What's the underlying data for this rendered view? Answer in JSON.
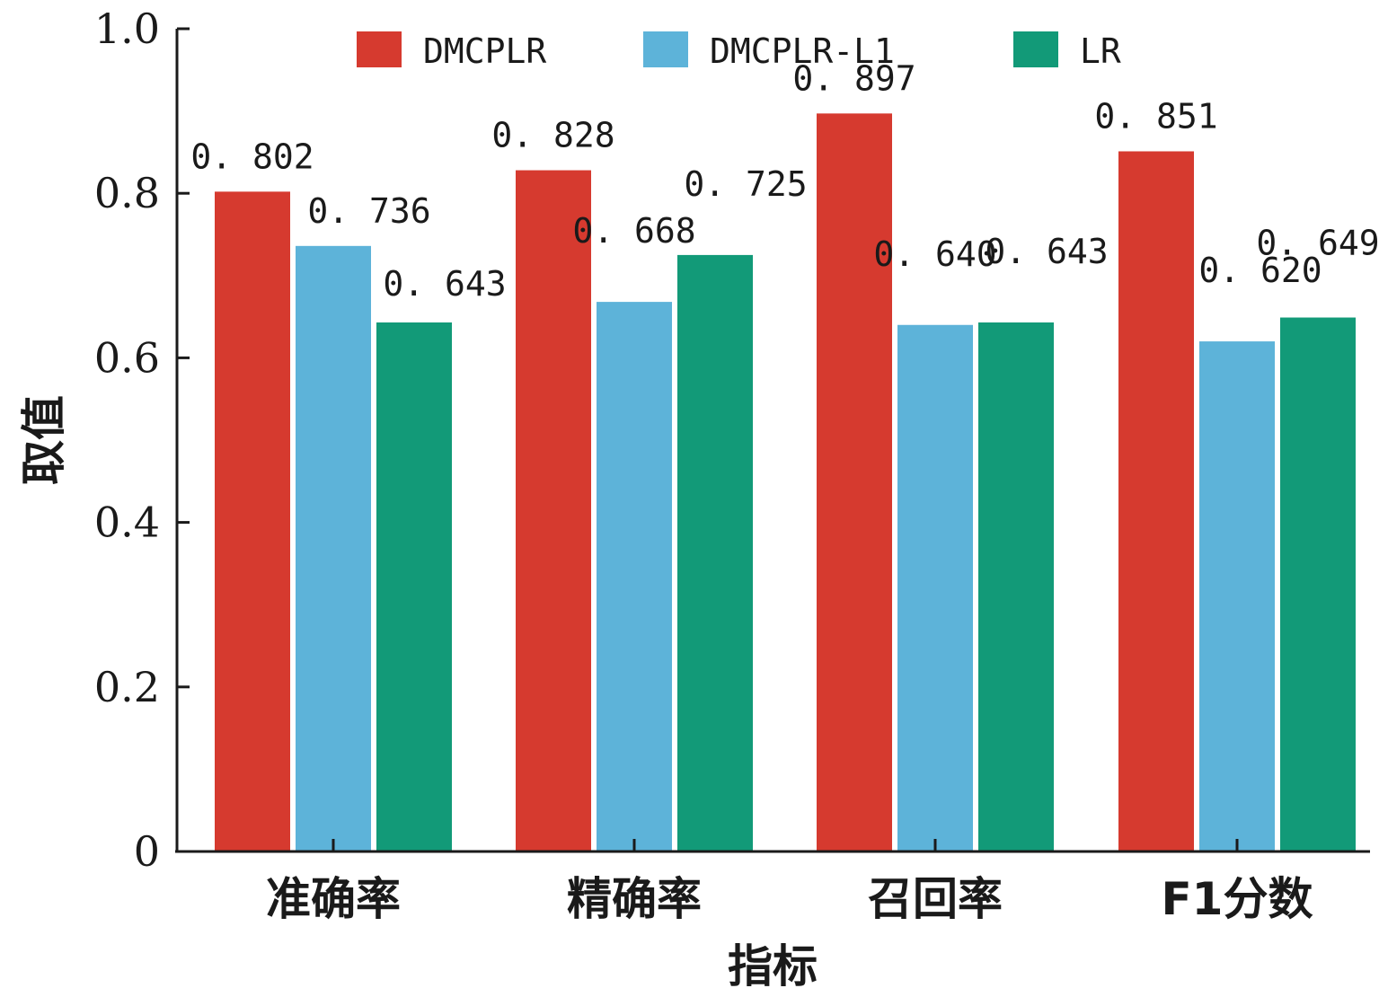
{
  "chart_data": {
    "type": "bar",
    "categories": [
      "准确率",
      "精确率",
      "召回率",
      "F1分数"
    ],
    "series": [
      {
        "name": "DMCPLR",
        "color": "#d63a2f",
        "values": [
          0.802,
          0.828,
          0.897,
          0.851
        ],
        "labels": [
          "0. 802",
          "0. 828",
          "0. 897",
          "0. 851"
        ]
      },
      {
        "name": "DMCPLR-L1",
        "color": "#5db3d9",
        "values": [
          0.736,
          0.668,
          0.64,
          0.62
        ],
        "labels": [
          "0. 736",
          "0. 668",
          "0. 640",
          "0. 620"
        ]
      },
      {
        "name": "LR",
        "color": "#129a78",
        "values": [
          0.643,
          0.725,
          0.643,
          0.649
        ],
        "labels": [
          "0. 643",
          "0. 725",
          "0. 643",
          "0. 649"
        ]
      }
    ],
    "xlabel": "指标",
    "ylabel": "取值",
    "ylim": [
      0,
      1.0
    ],
    "yticks": [
      "0",
      "0.2",
      "0.4",
      "0.6",
      "0.8",
      "1.0"
    ],
    "legend_position": "top",
    "grid": false
  }
}
